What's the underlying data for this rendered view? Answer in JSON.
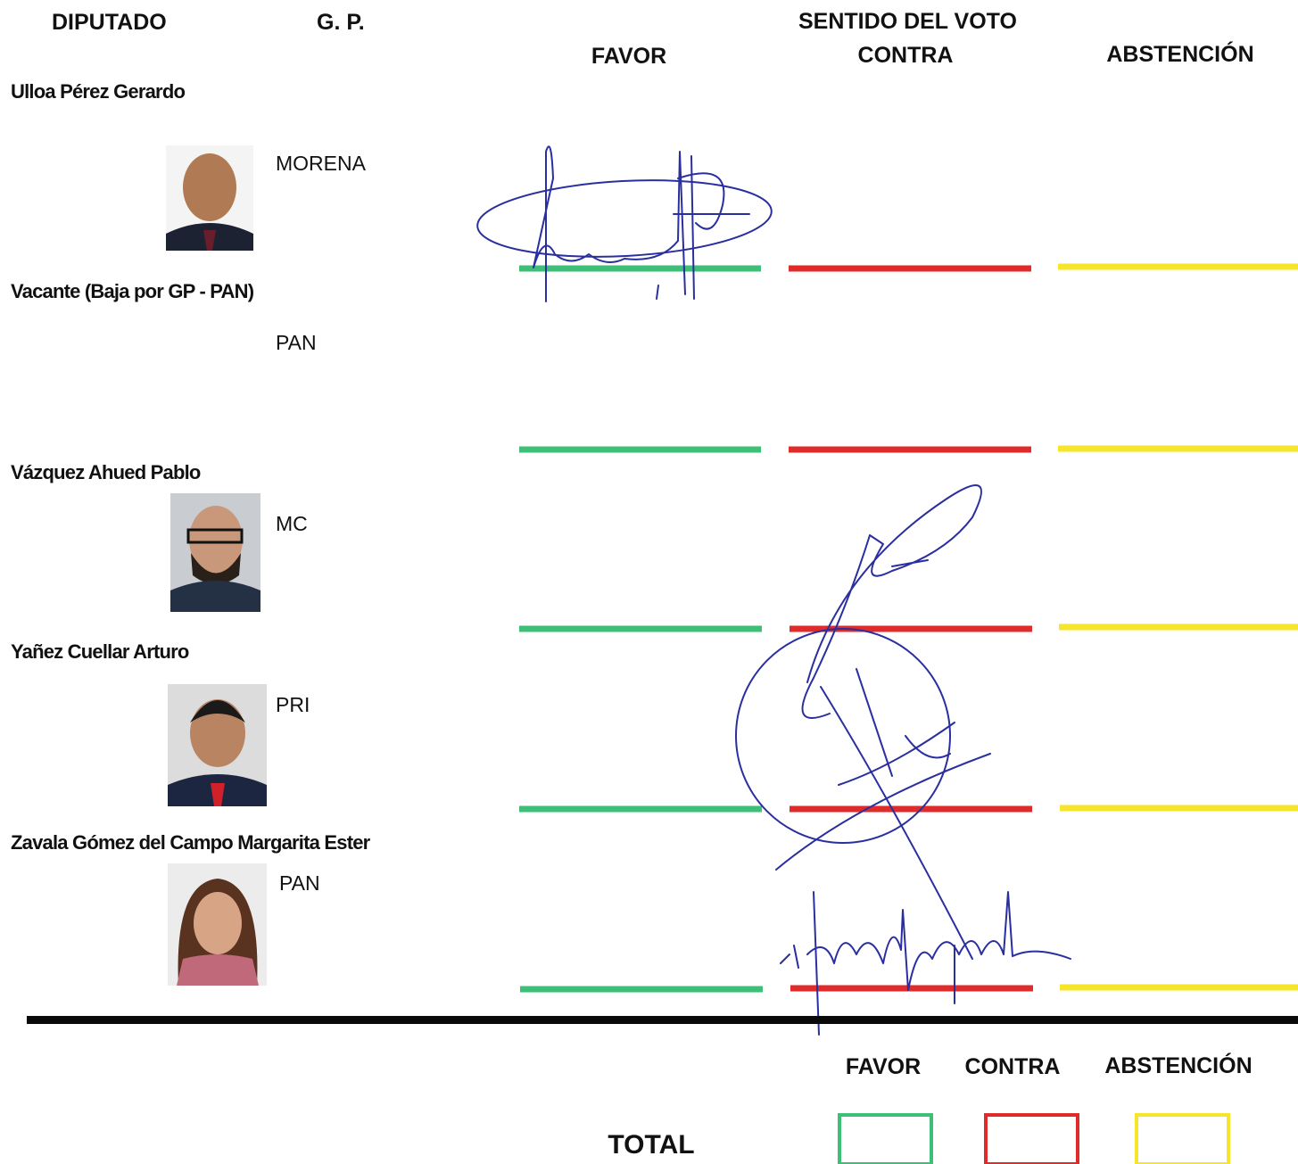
{
  "header": {
    "diputado": "DIPUTADO",
    "gp": "G. P.",
    "sentido": "SENTIDO DEL VOTO",
    "favor": "FAVOR",
    "contra": "CONTRA",
    "abstencion": "ABSTENCIÓN"
  },
  "rows": [
    {
      "name": "Ulloa Pérez Gerardo",
      "party": "MORENA"
    },
    {
      "name": "Vacante (Baja por GP - PAN)",
      "party": "PAN"
    },
    {
      "name": "Vázquez Ahued Pablo",
      "party": "MC"
    },
    {
      "name": "Yañez Cuellar Arturo",
      "party": "PRI"
    },
    {
      "name": "Zavala Gómez del Campo Margarita Ester",
      "party": "PAN"
    }
  ],
  "totals": {
    "favor": "FAVOR",
    "contra": "CONTRA",
    "abstencion": "ABSTENCIÓN",
    "label": "TOTAL"
  }
}
